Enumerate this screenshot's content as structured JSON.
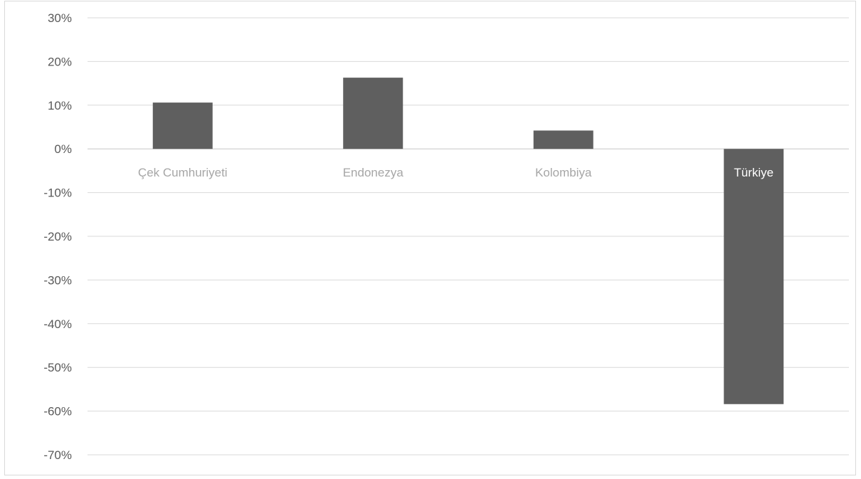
{
  "chart_data": {
    "type": "bar",
    "title": "",
    "xlabel": "",
    "ylabel": "",
    "categories": [
      "Çek Cumhuriyeti",
      "Endonezya",
      "Kolombiya",
      "Türkiye"
    ],
    "values": [
      10.6,
      16.3,
      4.2,
      -58.4
    ],
    "ylim": [
      -70,
      30
    ],
    "yticks": [
      30,
      20,
      10,
      0,
      -10,
      -20,
      -30,
      -40,
      -50,
      -60,
      -70
    ],
    "ytick_labels": [
      "30%",
      "20%",
      "10%",
      "0%",
      "-10%",
      "-20%",
      "-30%",
      "-40%",
      "-50%",
      "-60%",
      "-70%"
    ],
    "grid": true,
    "legend": "none",
    "bar_color": "#5f5f5f",
    "grid_color": "#d9d9d9",
    "category_label_color": "#a6a6a6",
    "axis_label_color": "#595959",
    "highlight_label_color": "#ffffff"
  }
}
